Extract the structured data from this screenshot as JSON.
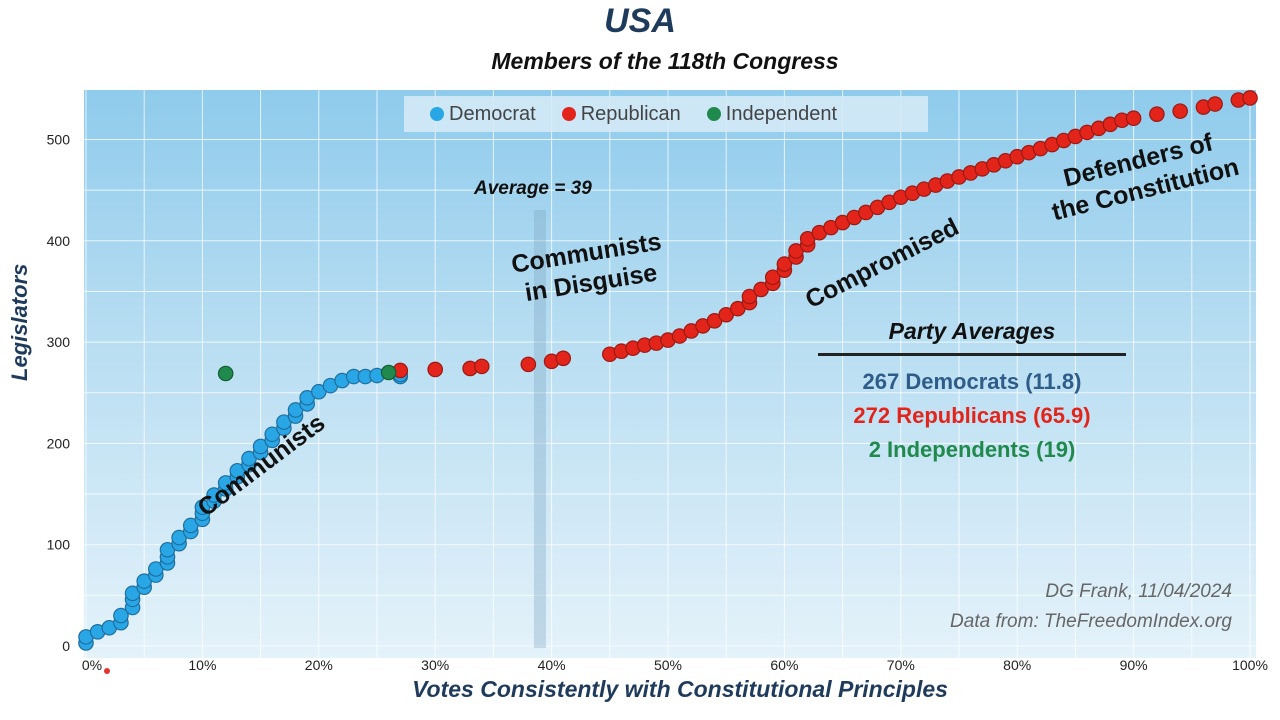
{
  "header": {
    "title": "USA",
    "subtitle": "Members of the 118th Congress"
  },
  "colors": {
    "democrat": "#29a6e6",
    "republican": "#e3241b",
    "independent": "#1f8a4c",
    "navy": "#1f3b5c"
  },
  "legend": {
    "democrat": "Democrat",
    "republican": "Republican",
    "independent": "Independent"
  },
  "annotations": {
    "average": "Average = 39",
    "communists": "Communists",
    "disguise_line1": "Communists",
    "disguise_line2": "in Disguise",
    "compromised": "Compromised",
    "defenders_line1": "Defenders of",
    "defenders_line2": "the Constitution"
  },
  "party_averages": {
    "title": "Party Averages",
    "democrats": "267 Democrats  (11.8)",
    "republicans": "272 Republicans  (65.9)",
    "independents": "2 Independents  (19)"
  },
  "credit": {
    "author": "DG Frank, 11/04/2024",
    "source": "Data from: TheFreedomIndex.org"
  },
  "chart_data": {
    "type": "scatter",
    "title": "Members of the 118th Congress",
    "xlabel": "Votes Consistently with Constitutional Principles",
    "ylabel": "Legislators",
    "xlim": [
      0,
      100
    ],
    "ylim": [
      0,
      550
    ],
    "x_ticks": [
      "0%",
      "10%",
      "20%",
      "30%",
      "40%",
      "50%",
      "60%",
      "70%",
      "80%",
      "90%",
      "100%"
    ],
    "y_ticks": [
      "0",
      "100",
      "200",
      "300",
      "400",
      "500"
    ],
    "grid": true,
    "legend_position": "top-center",
    "average_x": 39,
    "series": [
      {
        "name": "Democrat",
        "points": [
          [
            0,
            3
          ],
          [
            0,
            9
          ],
          [
            1,
            14
          ],
          [
            2,
            18
          ],
          [
            3,
            23
          ],
          [
            3,
            30
          ],
          [
            4,
            38
          ],
          [
            4,
            46
          ],
          [
            4,
            52
          ],
          [
            5,
            58
          ],
          [
            5,
            64
          ],
          [
            6,
            70
          ],
          [
            6,
            76
          ],
          [
            7,
            82
          ],
          [
            7,
            88
          ],
          [
            7,
            95
          ],
          [
            8,
            101
          ],
          [
            8,
            107
          ],
          [
            9,
            113
          ],
          [
            9,
            119
          ],
          [
            10,
            125
          ],
          [
            10,
            131
          ],
          [
            10,
            137
          ],
          [
            11,
            143
          ],
          [
            11,
            149
          ],
          [
            12,
            155
          ],
          [
            12,
            161
          ],
          [
            13,
            167
          ],
          [
            13,
            173
          ],
          [
            14,
            179
          ],
          [
            14,
            185
          ],
          [
            15,
            191
          ],
          [
            15,
            197
          ],
          [
            16,
            203
          ],
          [
            16,
            209
          ],
          [
            17,
            215
          ],
          [
            17,
            221
          ],
          [
            18,
            227
          ],
          [
            18,
            233
          ],
          [
            19,
            239
          ],
          [
            19,
            245
          ],
          [
            20,
            251
          ],
          [
            21,
            257
          ],
          [
            22,
            262
          ],
          [
            23,
            266
          ],
          [
            24,
            266
          ],
          [
            25,
            267
          ],
          [
            27,
            266
          ],
          [
            27,
            268
          ]
        ]
      },
      {
        "name": "Republican",
        "points": [
          [
            27,
            272
          ],
          [
            30,
            273
          ],
          [
            33,
            274
          ],
          [
            34,
            276
          ],
          [
            38,
            278
          ],
          [
            40,
            281
          ],
          [
            41,
            284
          ],
          [
            45,
            288
          ],
          [
            46,
            291
          ],
          [
            47,
            294
          ],
          [
            48,
            297
          ],
          [
            49,
            299
          ],
          [
            50,
            302
          ],
          [
            51,
            306
          ],
          [
            52,
            311
          ],
          [
            53,
            316
          ],
          [
            54,
            321
          ],
          [
            55,
            327
          ],
          [
            56,
            333
          ],
          [
            57,
            339
          ],
          [
            57,
            345
          ],
          [
            58,
            352
          ],
          [
            59,
            358
          ],
          [
            59,
            364
          ],
          [
            60,
            371
          ],
          [
            60,
            377
          ],
          [
            61,
            384
          ],
          [
            61,
            390
          ],
          [
            62,
            396
          ],
          [
            62,
            402
          ],
          [
            63,
            408
          ],
          [
            64,
            413
          ],
          [
            65,
            418
          ],
          [
            66,
            423
          ],
          [
            67,
            428
          ],
          [
            68,
            433
          ],
          [
            69,
            438
          ],
          [
            70,
            443
          ],
          [
            71,
            447
          ],
          [
            72,
            451
          ],
          [
            73,
            455
          ],
          [
            74,
            459
          ],
          [
            75,
            463
          ],
          [
            76,
            467
          ],
          [
            77,
            471
          ],
          [
            78,
            475
          ],
          [
            79,
            479
          ],
          [
            80,
            483
          ],
          [
            81,
            487
          ],
          [
            82,
            491
          ],
          [
            83,
            495
          ],
          [
            84,
            499
          ],
          [
            85,
            503
          ],
          [
            86,
            507
          ],
          [
            87,
            511
          ],
          [
            88,
            515
          ],
          [
            89,
            519
          ],
          [
            90,
            521
          ],
          [
            92,
            525
          ],
          [
            94,
            528
          ],
          [
            96,
            532
          ],
          [
            97,
            535
          ],
          [
            99,
            539
          ],
          [
            100,
            541
          ]
        ]
      },
      {
        "name": "Independent",
        "points": [
          [
            12,
            269
          ],
          [
            26,
            270
          ]
        ]
      }
    ]
  }
}
